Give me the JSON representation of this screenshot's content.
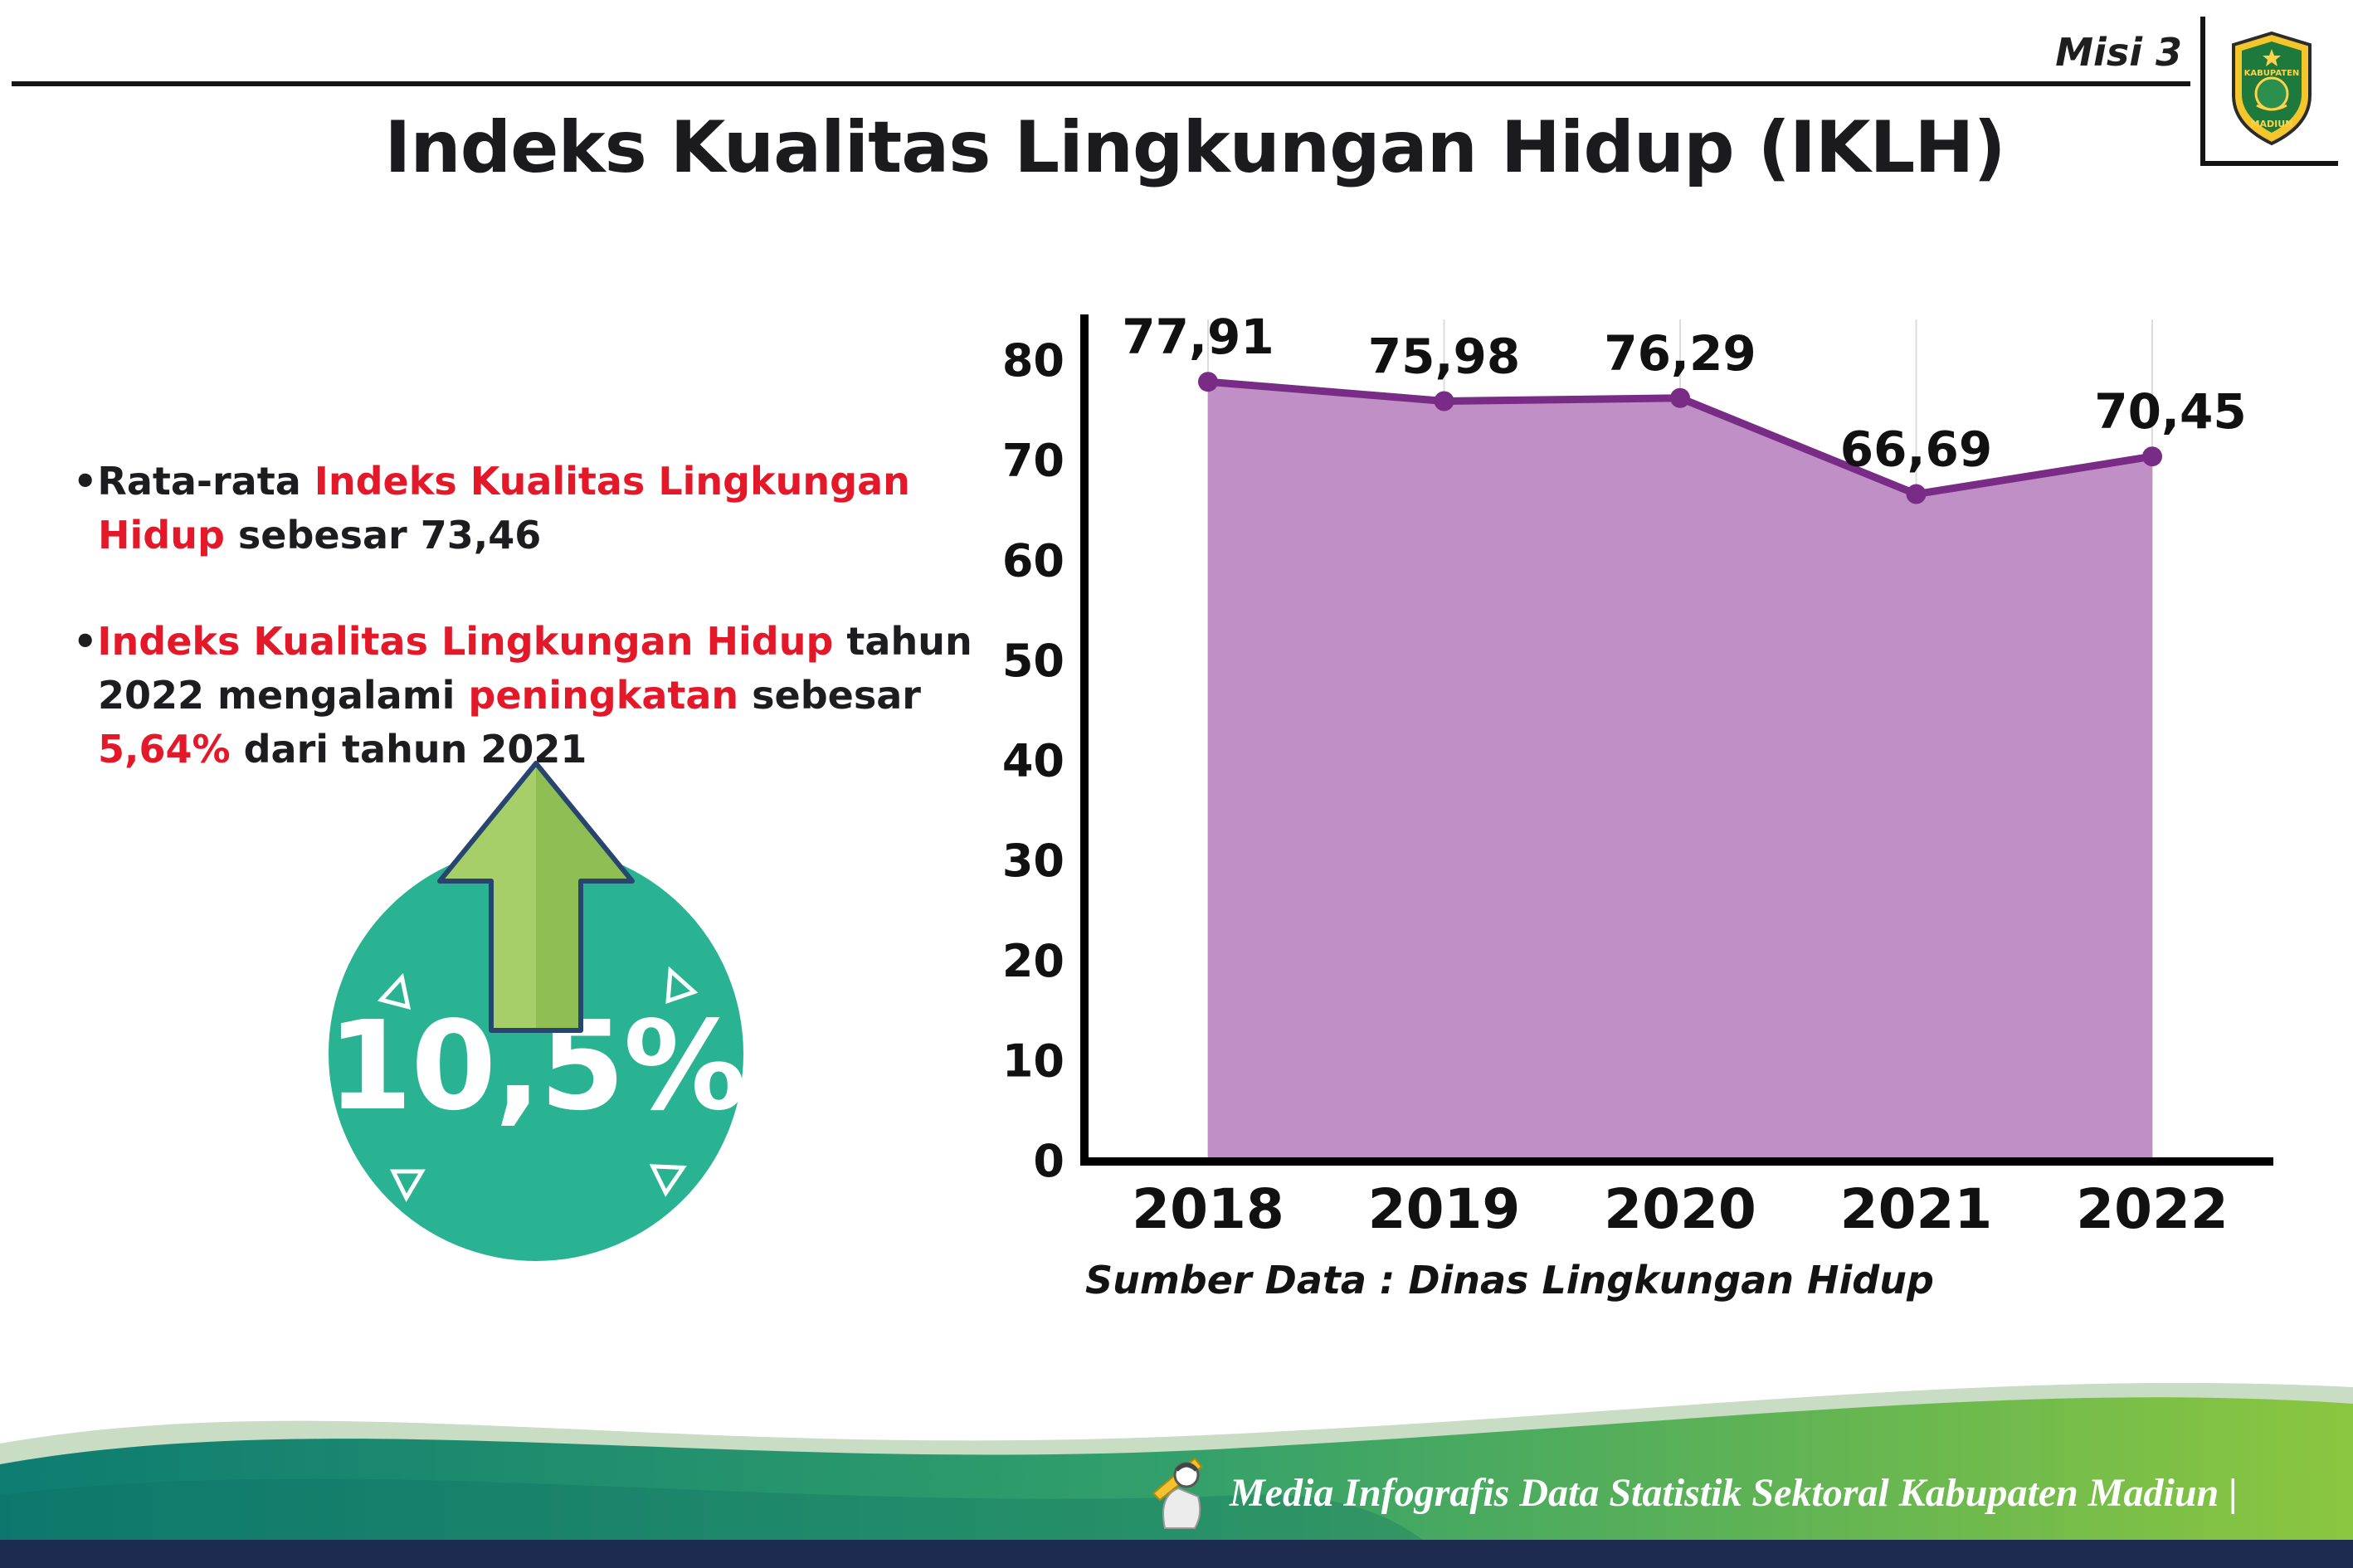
{
  "page": {
    "misi_label": "Misi 3",
    "title": "Indeks Kualitas Lingkungan Hidup (IKLH)",
    "logo_top": "KABUPATEN",
    "logo_bottom": "MADIUN",
    "source_label": "Sumber Data : Dinas Lingkungan Hidup",
    "footer_text": "Media Infografis Data Statistik Sektoral Kabupaten Madiun |"
  },
  "bullets": {
    "b1": {
      "s0": "•Rata-rata ",
      "s1": "Indeks Kualitas Lingkungan Hidup",
      "s2": " sebesar 73,46"
    },
    "b2": {
      "s0": "•",
      "s1": "Indeks Kualitas Lingkungan Hidup",
      "s2": " tahun 2022 mengalami ",
      "s3": "peningkatan",
      "s4": " sebesar ",
      "s5": "5,64%",
      "s6": " dari tahun 2021"
    }
  },
  "badge": {
    "value": "10,5%"
  },
  "colors": {
    "accent_red": "#e3192a",
    "line_purple": "#792c86",
    "fill_purple": "#c08fc5",
    "badge_teal": "#29b392",
    "arrow_green": "#a6cf6a",
    "footer_navy": "#1d2b50",
    "wave_teal": "#0e7c71",
    "wave_green": "#8bc63f"
  },
  "chart_data": {
    "type": "area",
    "categories": [
      "2018",
      "2019",
      "2020",
      "2021",
      "2022"
    ],
    "values": [
      77.91,
      75.98,
      76.29,
      66.69,
      70.45
    ],
    "value_labels": [
      "77,91",
      "75,98",
      "76,29",
      "66,69",
      "70,45"
    ],
    "title": "",
    "xlabel": "",
    "ylabel": "",
    "ylim": [
      0,
      80
    ],
    "yticks": [
      0,
      10,
      20,
      30,
      40,
      50,
      60,
      70,
      80
    ],
    "grid": "faint-vertical",
    "legend": "none"
  }
}
